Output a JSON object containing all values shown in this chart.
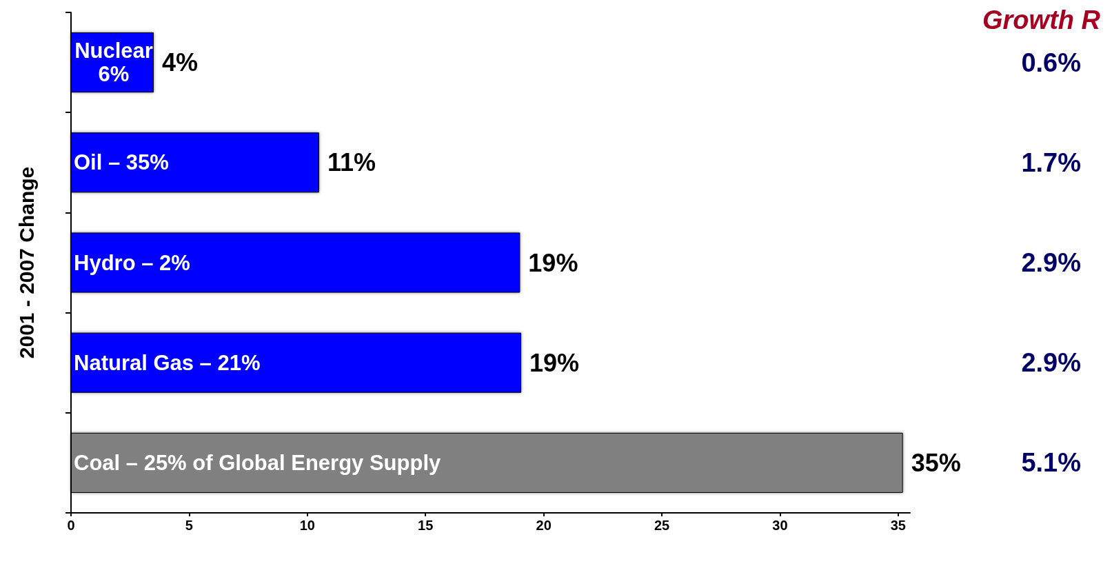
{
  "chart_data": {
    "type": "bar",
    "orientation": "horizontal",
    "ylabel": "2001 - 2007 Change",
    "categories": [
      "Nuclear\n6%",
      "Oil – 35%",
      "Hydro – 2%",
      "Natural Gas – 21%",
      "Coal – 25% of Global Energy Supply"
    ],
    "values": [
      3.5,
      10.5,
      19,
      19.05,
      35.2
    ],
    "colors": [
      "#0000ff",
      "#0000ff",
      "#0000ff",
      "#0000ff",
      "#808080"
    ],
    "value_labels": [
      "4%",
      "11%",
      "19%",
      "19%",
      "35%"
    ],
    "xlim": [
      0,
      35.5
    ],
    "xticks": [
      0,
      5,
      10,
      15,
      20,
      25,
      30,
      35
    ],
    "grid": false,
    "annotations": [
      "Growth R",
      "0.6%",
      "1.7%",
      "2.9%",
      "2.9%",
      "5.1%"
    ]
  }
}
